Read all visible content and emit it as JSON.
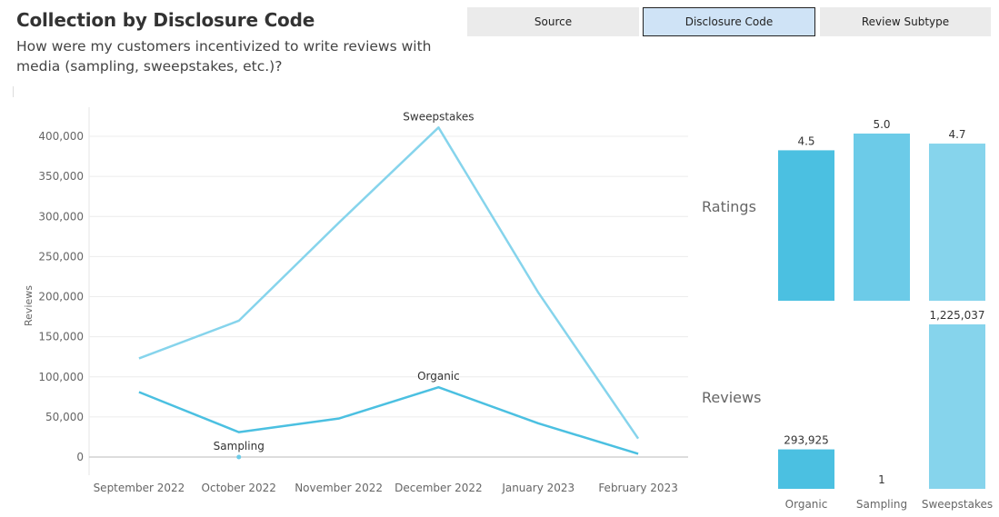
{
  "header": {
    "title": "Collection by Disclosure Code",
    "subtitle": "How were my customers incentivized to write reviews with media (sampling, sweepstakes, etc.)?"
  },
  "tabs": [
    {
      "label": "Source",
      "active": false
    },
    {
      "label": "Disclosure Code",
      "active": true
    },
    {
      "label": "Review Subtype",
      "active": false
    }
  ],
  "colors": {
    "organic": "#4bc0e1",
    "sampling": "#6ccbe8",
    "sweepstakes": "#86d4ec",
    "grid": "#ececec",
    "axis_text": "#666666"
  },
  "chart_data": [
    {
      "type": "line",
      "ylabel": "Reviews",
      "ylim": [
        0,
        400000
      ],
      "yticks": [
        0,
        50000,
        100000,
        150000,
        200000,
        250000,
        300000,
        350000,
        400000
      ],
      "ytick_labels": [
        "0",
        "50,000",
        "100,000",
        "150,000",
        "200,000",
        "250,000",
        "300,000",
        "350,000",
        "400,000"
      ],
      "categories": [
        "September 2022",
        "October 2022",
        "November 2022",
        "December 2022",
        "January 2023",
        "February 2023"
      ],
      "grid": true,
      "series": [
        {
          "name": "Sweepstakes",
          "values": [
            123000,
            170000,
            292000,
            411000,
            205000,
            23000
          ]
        },
        {
          "name": "Organic",
          "values": [
            81000,
            31000,
            48000,
            87000,
            42000,
            4000
          ]
        },
        {
          "name": "Sampling",
          "values": [
            null,
            1,
            null,
            null,
            null,
            null
          ]
        }
      ]
    },
    {
      "type": "bar",
      "rows": [
        "Ratings",
        "Reviews"
      ],
      "categories": [
        "Organic",
        "Sampling",
        "Sweepstakes"
      ],
      "series": [
        {
          "name": "Ratings",
          "values": [
            4.5,
            5.0,
            4.7
          ],
          "labels": [
            "4.5",
            "5.0",
            "4.7"
          ]
        },
        {
          "name": "Reviews",
          "values": [
            293925,
            1,
            1225037
          ],
          "labels": [
            "293,925",
            "1",
            "1,225,037"
          ]
        }
      ]
    }
  ]
}
